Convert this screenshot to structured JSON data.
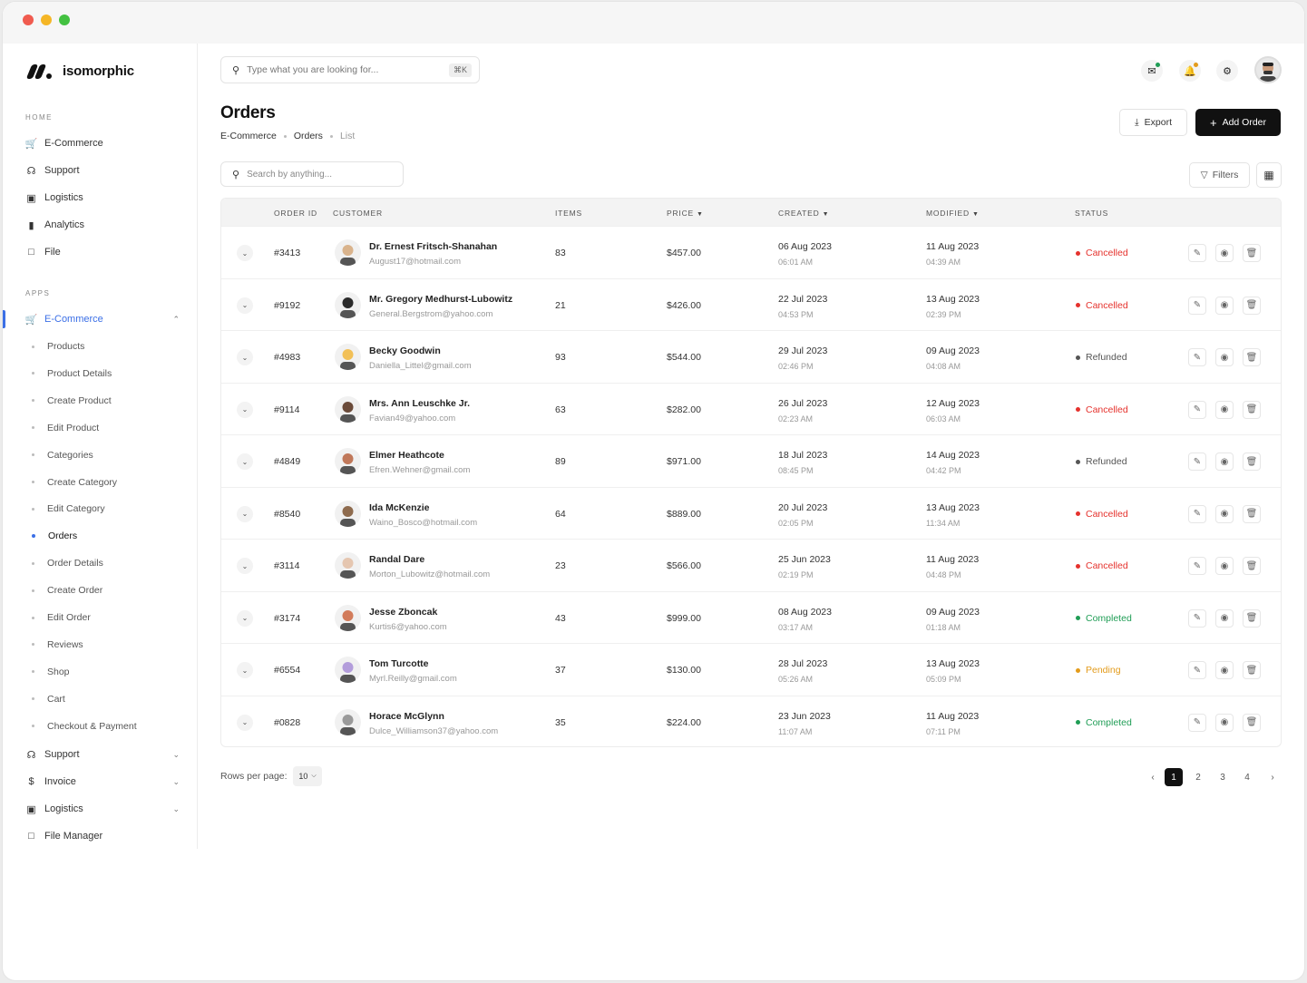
{
  "app": {
    "name": "isomorphic"
  },
  "sidebar": {
    "home_label": "HOME",
    "home_items": [
      {
        "label": "E-Commerce",
        "icon": "cart-icon"
      },
      {
        "label": "Support",
        "icon": "headset-icon"
      },
      {
        "label": "Logistics",
        "icon": "box-icon"
      },
      {
        "label": "Analytics",
        "icon": "chart-icon"
      },
      {
        "label": "File",
        "icon": "file-icon"
      }
    ],
    "apps_label": "APPS",
    "apps_active": {
      "label": "E-Commerce",
      "icon": "cart-icon"
    },
    "ecommerce_sub": [
      "Products",
      "Product Details",
      "Create Product",
      "Edit Product",
      "Categories",
      "Create Category",
      "Edit Category",
      "Orders",
      "Order Details",
      "Create Order",
      "Edit Order",
      "Reviews",
      "Shop",
      "Cart",
      "Checkout & Payment"
    ],
    "active_sub": "Orders",
    "apps_more": [
      {
        "label": "Support",
        "icon": "headset-icon"
      },
      {
        "label": "Invoice",
        "icon": "dollar-icon"
      },
      {
        "label": "Logistics",
        "icon": "box-icon"
      },
      {
        "label": "File Manager",
        "icon": "file-icon"
      }
    ]
  },
  "header": {
    "search_placeholder": "Type what you are looking for...",
    "search_shortcut": "⌘K"
  },
  "page": {
    "title": "Orders",
    "breadcrumb": [
      "E-Commerce",
      "Orders",
      "List"
    ],
    "export_label": "Export",
    "add_label": "Add Order",
    "table_search_placeholder": "Search by anything...",
    "filters_label": "Filters"
  },
  "table": {
    "columns": {
      "order_id": "ORDER ID",
      "customer": "CUSTOMER",
      "items": "ITEMS",
      "price": "PRICE",
      "created": "CREATED",
      "modified": "MODIFIED",
      "status": "STATUS"
    },
    "rows": [
      {
        "id": "#3413",
        "name": "Dr. Ernest Fritsch-Shanahan",
        "email": "August17@hotmail.com",
        "items": "83",
        "price": "$457.00",
        "created_date": "06 Aug 2023",
        "created_time": "06:01 AM",
        "modified_date": "11 Aug 2023",
        "modified_time": "04:39 AM",
        "status": "Cancelled"
      },
      {
        "id": "#9192",
        "name": "Mr. Gregory Medhurst-Lubowitz",
        "email": "General.Bergstrom@yahoo.com",
        "items": "21",
        "price": "$426.00",
        "created_date": "22 Jul 2023",
        "created_time": "04:53 PM",
        "modified_date": "13 Aug 2023",
        "modified_time": "02:39 PM",
        "status": "Cancelled"
      },
      {
        "id": "#4983",
        "name": "Becky Goodwin",
        "email": "Daniella_Littel@gmail.com",
        "items": "93",
        "price": "$544.00",
        "created_date": "29 Jul 2023",
        "created_time": "02:46 PM",
        "modified_date": "09 Aug 2023",
        "modified_time": "04:08 AM",
        "status": "Refunded"
      },
      {
        "id": "#9114",
        "name": "Mrs. Ann Leuschke Jr.",
        "email": "Favian49@yahoo.com",
        "items": "63",
        "price": "$282.00",
        "created_date": "26 Jul 2023",
        "created_time": "02:23 AM",
        "modified_date": "12 Aug 2023",
        "modified_time": "06:03 AM",
        "status": "Cancelled"
      },
      {
        "id": "#4849",
        "name": "Elmer Heathcote",
        "email": "Efren.Wehner@gmail.com",
        "items": "89",
        "price": "$971.00",
        "created_date": "18 Jul 2023",
        "created_time": "08:45 PM",
        "modified_date": "14 Aug 2023",
        "modified_time": "04:42 PM",
        "status": "Refunded"
      },
      {
        "id": "#8540",
        "name": "Ida McKenzie",
        "email": "Waino_Bosco@hotmail.com",
        "items": "64",
        "price": "$889.00",
        "created_date": "20 Jul 2023",
        "created_time": "02:05 PM",
        "modified_date": "13 Aug 2023",
        "modified_time": "11:34 AM",
        "status": "Cancelled"
      },
      {
        "id": "#3114",
        "name": "Randal Dare",
        "email": "Morton_Lubowitz@hotmail.com",
        "items": "23",
        "price": "$566.00",
        "created_date": "25 Jun 2023",
        "created_time": "02:19 PM",
        "modified_date": "11 Aug 2023",
        "modified_time": "04:48 PM",
        "status": "Cancelled"
      },
      {
        "id": "#3174",
        "name": "Jesse Zboncak",
        "email": "Kurtis6@yahoo.com",
        "items": "43",
        "price": "$999.00",
        "created_date": "08 Aug 2023",
        "created_time": "03:17 AM",
        "modified_date": "09 Aug 2023",
        "modified_time": "01:18 AM",
        "status": "Completed"
      },
      {
        "id": "#6554",
        "name": "Tom Turcotte",
        "email": "Myrl.Reilly@gmail.com",
        "items": "37",
        "price": "$130.00",
        "created_date": "28 Jul 2023",
        "created_time": "05:26 AM",
        "modified_date": "13 Aug 2023",
        "modified_time": "05:09 PM",
        "status": "Pending"
      },
      {
        "id": "#0828",
        "name": "Horace McGlynn",
        "email": "Dulce_Williamson37@yahoo.com",
        "items": "35",
        "price": "$224.00",
        "created_date": "23 Jun 2023",
        "created_time": "11:07 AM",
        "modified_date": "11 Aug 2023",
        "modified_time": "07:11 PM",
        "status": "Completed"
      }
    ]
  },
  "status_colors": {
    "Cancelled": "#e5322d",
    "Refunded": "#555555",
    "Completed": "#1f9d55",
    "Pending": "#e39b1b"
  },
  "pagination": {
    "rows_label": "Rows per page:",
    "rows_value": "10",
    "pages": [
      "1",
      "2",
      "3",
      "4"
    ],
    "current": "1"
  }
}
